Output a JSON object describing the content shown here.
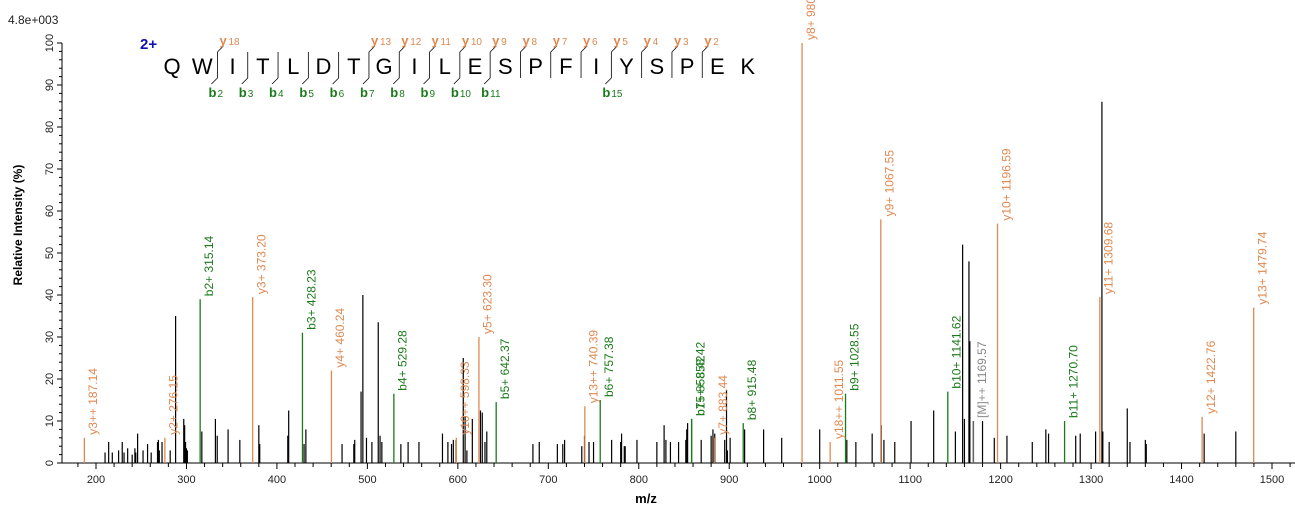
{
  "chart_data": {
    "type": "bar",
    "subtype": "mass-spectrum-stick",
    "title": "",
    "scale_label": "4.8e+003",
    "charge_state": "2+",
    "peptide_sequence": [
      "Q",
      "W",
      "I",
      "T",
      "L",
      "D",
      "T",
      "G",
      "I",
      "L",
      "E",
      "S",
      "P",
      "F",
      "I",
      "Y",
      "S",
      "P",
      "E",
      "K"
    ],
    "y_ions_annotated": [
      "y18",
      "y13",
      "y12",
      "y11",
      "y10",
      "y9",
      "y8",
      "y7",
      "y6",
      "y5",
      "y4",
      "y3",
      "y2"
    ],
    "b_ions_annotated": [
      "b2",
      "b3",
      "b4",
      "b5",
      "b6",
      "b7",
      "b8",
      "b9",
      "b10",
      "b11",
      "b15"
    ],
    "xlabel": "m/z",
    "ylabel": "Relative Intensity (%)",
    "xlim": [
      170,
      1530
    ],
    "ylim": [
      0,
      100
    ],
    "x_ticks": [
      200,
      300,
      400,
      500,
      600,
      700,
      800,
      900,
      1000,
      1100,
      1200,
      1300,
      1400,
      1500
    ],
    "y_ticks": [
      0,
      10,
      20,
      30,
      40,
      50,
      60,
      70,
      80,
      90,
      100
    ],
    "annotated_peaks": [
      {
        "label": "y3++ 187.14",
        "mz": 187.14,
        "intensity": 6,
        "type": "y"
      },
      {
        "label": "y2+ 276.15",
        "mz": 276.15,
        "intensity": 6,
        "type": "y"
      },
      {
        "label": "b2+ 315.14",
        "mz": 315.14,
        "intensity": 39,
        "type": "b"
      },
      {
        "label": "y3+ 373.20",
        "mz": 373.2,
        "intensity": 39.5,
        "type": "y"
      },
      {
        "label": "b3+ 428.23",
        "mz": 428.23,
        "intensity": 31,
        "type": "b"
      },
      {
        "label": "y4+ 460.24",
        "mz": 460.24,
        "intensity": 22,
        "type": "y"
      },
      {
        "label": "b4+ 529.28",
        "mz": 529.28,
        "intensity": 16.5,
        "type": "b"
      },
      {
        "label": "y10++ 598.33",
        "mz": 598.33,
        "intensity": 6,
        "type": "y"
      },
      {
        "label": "y5+ 623.30",
        "mz": 623.3,
        "intensity": 30,
        "type": "y"
      },
      {
        "label": "b5+ 642.37",
        "mz": 642.37,
        "intensity": 14.5,
        "type": "b"
      },
      {
        "label": "y13++ 740.39",
        "mz": 740.39,
        "intensity": 13.5,
        "type": "y"
      },
      {
        "label": "b6+ 757.38",
        "mz": 757.38,
        "intensity": 15,
        "type": "b"
      },
      {
        "label": "b7+ 858.42",
        "mz": 858.42,
        "intensity": 10.5,
        "type": "b"
      },
      {
        "label": "b15++ 858.42",
        "mz": 858.42,
        "intensity": 10.5,
        "type": "b"
      },
      {
        "label": "y7+ 883.44",
        "mz": 883.44,
        "intensity": 6,
        "type": "y"
      },
      {
        "label": "b8+ 915.48",
        "mz": 915.48,
        "intensity": 9.5,
        "type": "b"
      },
      {
        "label": "y8+ 980.5",
        "mz": 980.5,
        "intensity": 100,
        "type": "y"
      },
      {
        "label": "y18++ 1011.55",
        "mz": 1011.55,
        "intensity": 5,
        "type": "y"
      },
      {
        "label": "b9+ 1028.55",
        "mz": 1028.55,
        "intensity": 16.5,
        "type": "b"
      },
      {
        "label": "y9+ 1067.55",
        "mz": 1067.55,
        "intensity": 58,
        "type": "y"
      },
      {
        "label": "b10+ 1141.62",
        "mz": 1141.62,
        "intensity": 17,
        "type": "b"
      },
      {
        "label": "[M]++ 1169.57",
        "mz": 1169.57,
        "intensity": 10,
        "type": "precursor"
      },
      {
        "label": "y10+ 1196.59",
        "mz": 1196.59,
        "intensity": 57,
        "type": "y"
      },
      {
        "label": "b11+ 1270.70",
        "mz": 1270.7,
        "intensity": 10,
        "type": "b"
      },
      {
        "label": "y11+ 1309.68",
        "mz": 1309.68,
        "intensity": 39.5,
        "type": "y"
      },
      {
        "label": "y12+ 1422.76",
        "mz": 1422.76,
        "intensity": 11,
        "type": "y"
      },
      {
        "label": "y13+ 1479.74",
        "mz": 1479.74,
        "intensity": 37,
        "type": "y"
      }
    ],
    "unannotated_peaks": [
      [
        210,
        2.5
      ],
      [
        214,
        5
      ],
      [
        218,
        2.5
      ],
      [
        225,
        3
      ],
      [
        229,
        5
      ],
      [
        231,
        2.5
      ],
      [
        235,
        3.5
      ],
      [
        240,
        2
      ],
      [
        243,
        3.5
      ],
      [
        244,
        2.5
      ],
      [
        246,
        7
      ],
      [
        252,
        3
      ],
      [
        257,
        4.5
      ],
      [
        261,
        2.5
      ],
      [
        268,
        5
      ],
      [
        269,
        5.5
      ],
      [
        270,
        3
      ],
      [
        273,
        5
      ],
      [
        282,
        3
      ],
      [
        288,
        35
      ],
      [
        297,
        10.5
      ],
      [
        298,
        9
      ],
      [
        299,
        5
      ],
      [
        300,
        3.5
      ],
      [
        301,
        3
      ],
      [
        317,
        7.5
      ],
      [
        332,
        10.5
      ],
      [
        334,
        6.5
      ],
      [
        346,
        8
      ],
      [
        359,
        5.5
      ],
      [
        380,
        9
      ],
      [
        381,
        4.5
      ],
      [
        412,
        6.5
      ],
      [
        413,
        12.5
      ],
      [
        430,
        4.5
      ],
      [
        432,
        8
      ],
      [
        472,
        4.5
      ],
      [
        485,
        4.5
      ],
      [
        486,
        5.5
      ],
      [
        493,
        17
      ],
      [
        495,
        40
      ],
      [
        499,
        6
      ],
      [
        505,
        5
      ],
      [
        512,
        33.5
      ],
      [
        514,
        6.5
      ],
      [
        516,
        5
      ],
      [
        537,
        4.5
      ],
      [
        545,
        5
      ],
      [
        557,
        5
      ],
      [
        583,
        7
      ],
      [
        589,
        5
      ],
      [
        593,
        4.5
      ],
      [
        595,
        5.5
      ],
      [
        598,
        5.5
      ],
      [
        606,
        25
      ],
      [
        608,
        11
      ],
      [
        610,
        3
      ],
      [
        616,
        10.5
      ],
      [
        625,
        12.5
      ],
      [
        627,
        12
      ],
      [
        630,
        5
      ],
      [
        632,
        7.5
      ],
      [
        683,
        4.5
      ],
      [
        690,
        5
      ],
      [
        710,
        4.5
      ],
      [
        716,
        4.5
      ],
      [
        718,
        5.5
      ],
      [
        737,
        4
      ],
      [
        740,
        6.5
      ],
      [
        745,
        5
      ],
      [
        750,
        5
      ],
      [
        770,
        5.5
      ],
      [
        780,
        5
      ],
      [
        781,
        7
      ],
      [
        784,
        4
      ],
      [
        785,
        4
      ],
      [
        798,
        5.5
      ],
      [
        820,
        5
      ],
      [
        828,
        9
      ],
      [
        830,
        5.5
      ],
      [
        835,
        5
      ],
      [
        844,
        5
      ],
      [
        852,
        5.5
      ],
      [
        853,
        8
      ],
      [
        854,
        9.5
      ],
      [
        869,
        5.5
      ],
      [
        880,
        6.5
      ],
      [
        882,
        8
      ],
      [
        884,
        7
      ],
      [
        895,
        5.5
      ],
      [
        897,
        17.5
      ],
      [
        898,
        3
      ],
      [
        901,
        6
      ],
      [
        917,
        8
      ],
      [
        938,
        8
      ],
      [
        958,
        6
      ],
      [
        1000,
        8
      ],
      [
        1030,
        5.5
      ],
      [
        1040,
        5
      ],
      [
        1058,
        7
      ],
      [
        1068,
        9
      ],
      [
        1071,
        5.5
      ],
      [
        1083,
        5
      ],
      [
        1101,
        10
      ],
      [
        1126,
        12.5
      ],
      [
        1150,
        7.5
      ],
      [
        1158,
        52
      ],
      [
        1160,
        10.5
      ],
      [
        1165,
        48
      ],
      [
        1166,
        29
      ],
      [
        1170,
        10
      ],
      [
        1180,
        10
      ],
      [
        1193,
        6
      ],
      [
        1207,
        6.5
      ],
      [
        1235,
        5
      ],
      [
        1250,
        8
      ],
      [
        1253,
        7
      ],
      [
        1283,
        6.5
      ],
      [
        1288,
        7
      ],
      [
        1305,
        7.5
      ],
      [
        1312,
        86
      ],
      [
        1313,
        7.5
      ],
      [
        1320,
        5
      ],
      [
        1340,
        13
      ],
      [
        1343,
        5
      ],
      [
        1360,
        5.5
      ],
      [
        1361,
        4.5
      ],
      [
        1425,
        7
      ],
      [
        1460,
        7.5
      ]
    ]
  }
}
